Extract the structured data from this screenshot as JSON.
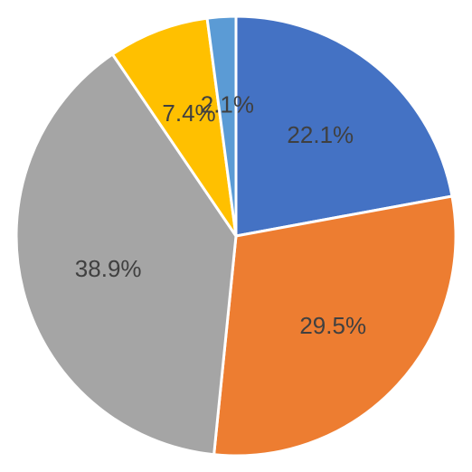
{
  "chart_data": {
    "type": "pie",
    "title": "",
    "legend": "none",
    "slices": [
      {
        "label": "22.1%",
        "value": 22.1,
        "color": "#4472C4"
      },
      {
        "label": "29.5%",
        "value": 29.5,
        "color": "#ED7D31"
      },
      {
        "label": "38.9%",
        "value": 38.9,
        "color": "#A5A5A5"
      },
      {
        "label": "7.4%",
        "value": 7.4,
        "color": "#FFC000"
      },
      {
        "label": "2.1%",
        "value": 2.1,
        "color": "#5B9BD5"
      }
    ]
  }
}
